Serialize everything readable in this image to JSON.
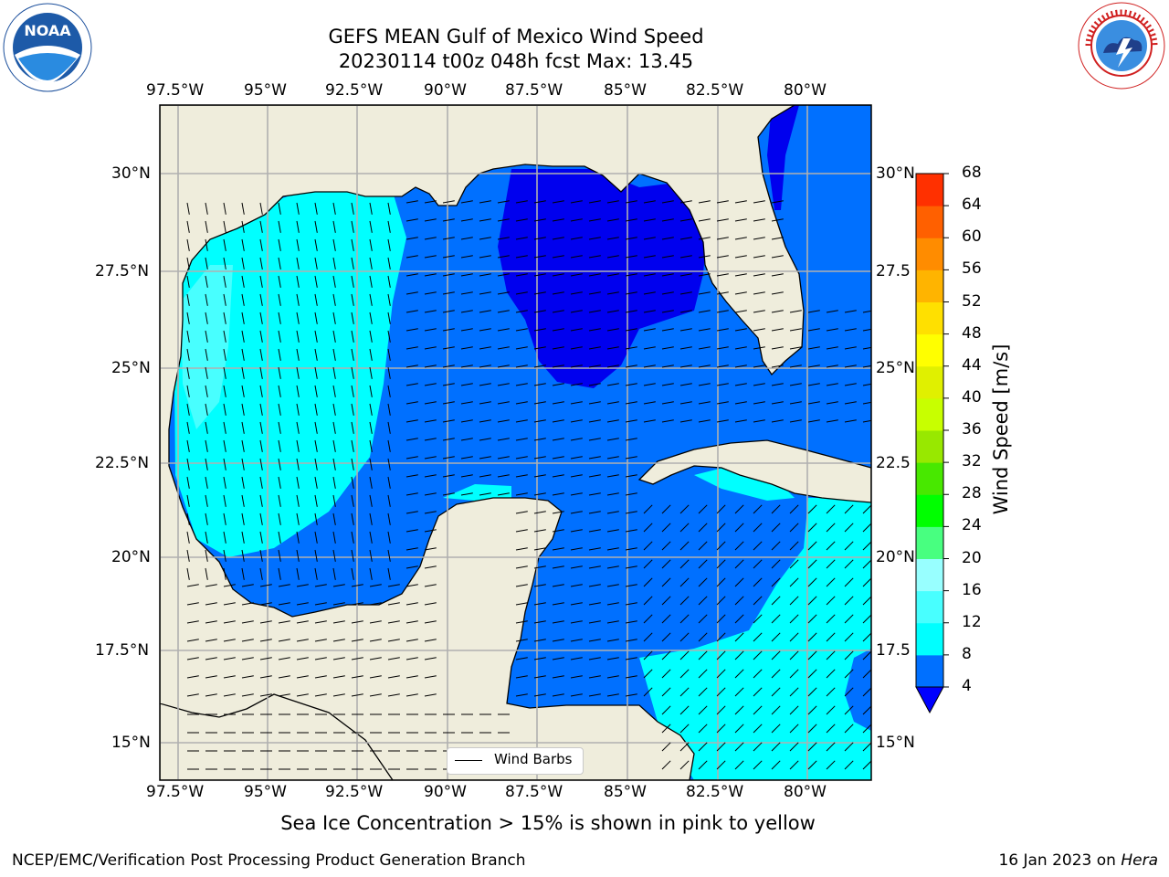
{
  "title": {
    "line1": "GEFS MEAN Gulf of Mexico Wind Speed",
    "line2": "20230114 t00z 048h fcst   Max: 13.45"
  },
  "lon_labels": [
    "97.5°W",
    "95°W",
    "92.5°W",
    "90°W",
    "87.5°W",
    "85°W",
    "82.5°W",
    "80°W"
  ],
  "lat_labels": [
    "30°N",
    "27.5°N",
    "25°N",
    "22.5°N",
    "20°N",
    "17.5°N",
    "15°N"
  ],
  "right_lat_labels": [
    "30°N",
    "27.5",
    "25°N",
    "22.5",
    "20°N",
    "17.5",
    "15°N"
  ],
  "colorbar": {
    "label": "Wind Speed [m/s]",
    "ticks": [
      "4",
      "8",
      "12",
      "16",
      "20",
      "24",
      "28",
      "32",
      "36",
      "40",
      "44",
      "48",
      "52",
      "56",
      "60",
      "64",
      "68"
    ],
    "colors": [
      "#0070ff",
      "#00ffff",
      "#48ffff",
      "#98ffff",
      "#48ff80",
      "#00ff00",
      "#48e800",
      "#98e800",
      "#c8ff00",
      "#e0f000",
      "#ffff00",
      "#ffe000",
      "#ffb400",
      "#ff8c00",
      "#ff6000",
      "#ff3000",
      "#ff0000"
    ],
    "extend_color": "#0000ff"
  },
  "legend": {
    "label": "Wind Barbs"
  },
  "caption": "Sea Ice Concentration > 15% is shown in pink to yellow",
  "footer": {
    "left": "NCEP/EMC/Verification Post Processing Product Generation Branch",
    "date": "16 Jan 2023 on",
    "machine": "Hera"
  },
  "colors": {
    "land": "#efeddc",
    "speed_lt4": "#0000ee",
    "speed_4_8": "#0070ff",
    "speed_8_12": "#00ffff",
    "speed_12_16": "#48ffff",
    "grid": "#b0b0b0"
  },
  "logos": {
    "left": "NOAA",
    "right": "NATIONAL WEATHER SERVICE"
  }
}
